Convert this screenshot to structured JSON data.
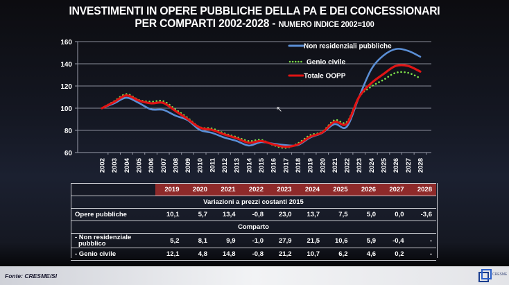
{
  "title": {
    "line1": "INVESTIMENTI IN OPERE PUBBLICHE DELLA PA E DEI CONCESSIONARI",
    "line2": "PER COMPARTI 2002-2028 - ",
    "line2_sub": "NUMERO INDICE 2002=100"
  },
  "chart_data": {
    "type": "line",
    "title": "INVESTIMENTI IN OPERE PUBBLICHE DELLA PA E DEI CONCESSIONARI PER COMPARTI 2002-2028 - NUMERO INDICE 2002=100",
    "xlabel": "",
    "ylabel": "",
    "ylim": [
      60,
      160
    ],
    "yticks": [
      60,
      80,
      100,
      120,
      140,
      160
    ],
    "grid": true,
    "legend_position": "top-right",
    "x": [
      "2002",
      "2003",
      "2004",
      "2005",
      "2006",
      "2007",
      "2008",
      "2009",
      "2010",
      "2011",
      "2012",
      "2013",
      "2014",
      "2015",
      "2016",
      "2017",
      "2018",
      "2019",
      "2020",
      "2021",
      "2022",
      "2023",
      "2024",
      "2025",
      "2026",
      "2027",
      "2028"
    ],
    "series": [
      {
        "name": "Non residenziali pubbliche",
        "color": "#5b8fd6",
        "style": "solid",
        "values": [
          100,
          104.4,
          109.4,
          104.8,
          99.0,
          98.5,
          93.3,
          89.2,
          80.4,
          77.7,
          73.5,
          70.4,
          66.3,
          69.4,
          68.0,
          66.7,
          66.7,
          73.5,
          77.7,
          85.6,
          83.3,
          110.0,
          135.0,
          147.5,
          153.3,
          151.7,
          146.4
        ]
      },
      {
        "name": "Genio civile",
        "color": "#7ee04a",
        "style": "dotted",
        "values": [
          100,
          106.3,
          112.7,
          107.5,
          105.8,
          106.4,
          99.0,
          91.3,
          82.9,
          81.7,
          77.3,
          74.0,
          70.4,
          71.4,
          66.7,
          64.2,
          68.3,
          75.6,
          78.8,
          89.2,
          87.5,
          110.0,
          119.4,
          125.6,
          131.9,
          131.9,
          127.0
        ]
      },
      {
        "name": "Totale OOPP",
        "color": "#e01414",
        "style": "solid",
        "values": [
          100,
          105.6,
          111.5,
          106.9,
          104.4,
          104.8,
          97.5,
          90.2,
          82.5,
          80.4,
          76.3,
          72.9,
          68.8,
          70.4,
          67.3,
          65.2,
          67.3,
          74.2,
          78.1,
          87.7,
          86.0,
          110.0,
          122.5,
          130.8,
          138.1,
          138.1,
          133.0
        ]
      }
    ]
  },
  "table": {
    "years": [
      "2019",
      "2020",
      "2021",
      "2022",
      "2023",
      "2024",
      "2025",
      "2026",
      "2027",
      "2028"
    ],
    "section1_title": "Variazioni a prezzi costanti 2015",
    "section2_title": "Comparto",
    "rows": {
      "opere": {
        "label": "Opere pubbliche",
        "values": [
          "10,1",
          "5,7",
          "13,4",
          "-0,8",
          "23,0",
          "13,7",
          "7,5",
          "5,0",
          "0,0",
          "-3,6"
        ]
      },
      "nonres": {
        "label_line1": "- Non residenziale",
        "label_line2": "pubblico",
        "values": [
          "5,2",
          "8,1",
          "9,9",
          "-1,0",
          "27,9",
          "21,5",
          "10,6",
          "5,9",
          "-0,4",
          "-"
        ]
      },
      "genio": {
        "label": "- Genio civile",
        "values": [
          "12,1",
          "4,8",
          "14,8",
          "-0,8",
          "21,2",
          "10,7",
          "6,2",
          "4,6",
          "0,2",
          "-"
        ]
      }
    }
  },
  "footer": {
    "source": "Fonte: CRESME/SI",
    "logo_text": "CRESME"
  }
}
